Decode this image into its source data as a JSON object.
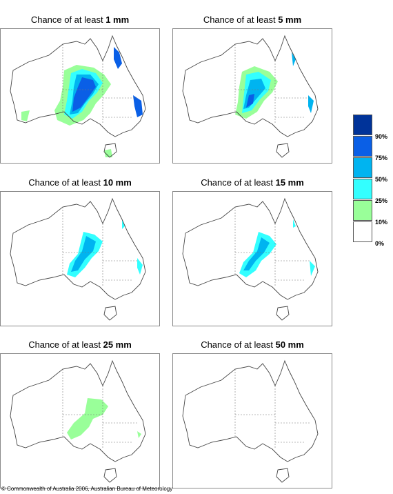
{
  "panels": [
    {
      "prefix": "Chance of at least ",
      "amount": "1 mm",
      "level": 1
    },
    {
      "prefix": "Chance of at least ",
      "amount": "5 mm",
      "level": 2
    },
    {
      "prefix": "Chance of at least ",
      "amount": "10 mm",
      "level": 3
    },
    {
      "prefix": "Chance of at least ",
      "amount": "15 mm",
      "level": 4
    },
    {
      "prefix": "Chance of at least ",
      "amount": "25 mm",
      "level": 5
    },
    {
      "prefix": "Chance of at least ",
      "amount": "50 mm",
      "level": 6
    }
  ],
  "legend": {
    "colors": [
      "#003399",
      "#0a5fe6",
      "#00b4f0",
      "#33ffff",
      "#99ff99",
      "#ffffff"
    ],
    "labels": [
      "90%",
      "75%",
      "50%",
      "25%",
      "10%",
      "0%"
    ]
  },
  "copyright": "© Commonwealth of Australia 2006, Australian Bureau of Meteorology"
}
